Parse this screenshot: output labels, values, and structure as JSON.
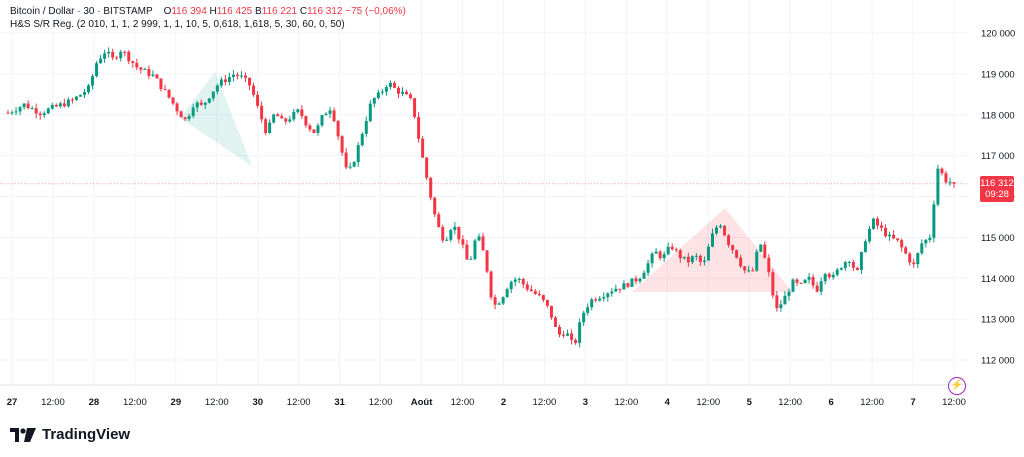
{
  "legend": {
    "symbol": "Bitcoin / Dollar · 30 · BITSTAMP",
    "ohlc": [
      {
        "label": "O",
        "value": "116 394"
      },
      {
        "label": "H",
        "value": "116 425"
      },
      {
        "label": "B",
        "value": "116 221"
      },
      {
        "label": "C",
        "value": "116 312"
      }
    ],
    "change": "−75 (−0,06%)",
    "indicator": "H&S S/R Reg. (2 010, 1, 1, 2 999, 1, 1, 10, 5, 0,618, 1,618, 5, 30, 60, 0, 50)"
  },
  "price_label": {
    "price": "116 312",
    "countdown": "09:28"
  },
  "brand": "TradingView",
  "colors": {
    "up": "#089981",
    "down": "#f23645",
    "grid": "#f0f3fa",
    "text": "#131722"
  },
  "chart_data": {
    "type": "candlestick",
    "y_ticks": [
      "120 000",
      "119 000",
      "118 000",
      "117 000",
      "116 000",
      "115 000",
      "114 000",
      "113 000",
      "112 000"
    ],
    "y_tick_values": [
      120000,
      119000,
      118000,
      117000,
      116000,
      115000,
      114000,
      113000,
      112000
    ],
    "x_ticks": [
      "27",
      "12:00",
      "28",
      "12:00",
      "29",
      "12:00",
      "30",
      "12:00",
      "31",
      "12:00",
      "Août",
      "12:00",
      "2",
      "12:00",
      "3",
      "12:00",
      "4",
      "12:00",
      "5",
      "12:00",
      "6",
      "12:00",
      "7",
      "12:00"
    ],
    "price_line": 116312,
    "path": [
      [
        0,
        118050
      ],
      [
        2,
        118250
      ],
      [
        4,
        118050
      ],
      [
        6,
        118200
      ],
      [
        8,
        118350
      ],
      [
        10,
        118650
      ],
      [
        11,
        119300
      ],
      [
        12,
        119550
      ],
      [
        13,
        119350
      ],
      [
        14,
        119600
      ],
      [
        16,
        119150
      ],
      [
        18,
        118950
      ],
      [
        20,
        118400
      ],
      [
        21,
        118100
      ],
      [
        22,
        117850
      ],
      [
        23,
        118300
      ],
      [
        24,
        118200
      ],
      [
        25,
        118500
      ],
      [
        26,
        118750
      ],
      [
        28,
        119000
      ],
      [
        29,
        118900
      ],
      [
        30,
        118700
      ],
      [
        31,
        118100
      ],
      [
        32,
        117550
      ],
      [
        33,
        118050
      ],
      [
        34,
        117800
      ],
      [
        35,
        117950
      ],
      [
        36,
        118100
      ],
      [
        37,
        117750
      ],
      [
        38,
        117550
      ],
      [
        39,
        118000
      ],
      [
        40,
        118200
      ],
      [
        41,
        117350
      ],
      [
        42,
        116500
      ],
      [
        43,
        117000
      ],
      [
        44,
        117700
      ],
      [
        45,
        118350
      ],
      [
        46,
        118500
      ],
      [
        47,
        118800
      ],
      [
        48,
        118600
      ],
      [
        49,
        118500
      ],
      [
        50,
        118300
      ],
      [
        51,
        117200
      ],
      [
        52,
        116250
      ],
      [
        53,
        115350
      ],
      [
        54,
        114900
      ],
      [
        55,
        115350
      ],
      [
        56,
        114900
      ],
      [
        57,
        114300
      ],
      [
        58,
        115100
      ],
      [
        59,
        114500
      ],
      [
        60,
        113300
      ],
      [
        61,
        113500
      ],
      [
        62,
        113900
      ],
      [
        63,
        114000
      ],
      [
        64,
        113800
      ],
      [
        65,
        113650
      ],
      [
        66,
        113500
      ],
      [
        67,
        113200
      ],
      [
        68,
        112600
      ],
      [
        69,
        112700
      ],
      [
        70,
        112300
      ],
      [
        71,
        113100
      ],
      [
        72,
        113450
      ],
      [
        73,
        113550
      ],
      [
        74,
        113650
      ],
      [
        75,
        113750
      ],
      [
        76,
        113800
      ],
      [
        77,
        113900
      ],
      [
        78,
        114000
      ],
      [
        79,
        114300
      ],
      [
        80,
        114650
      ],
      [
        81,
        114500
      ],
      [
        82,
        114800
      ],
      [
        83,
        114550
      ],
      [
        84,
        114400
      ],
      [
        85,
        114550
      ],
      [
        86,
        114300
      ],
      [
        87,
        115000
      ],
      [
        88,
        115400
      ],
      [
        89,
        114900
      ],
      [
        90,
        114600
      ],
      [
        91,
        114200
      ],
      [
        92,
        114100
      ],
      [
        93,
        114900
      ],
      [
        94,
        114200
      ],
      [
        95,
        113200
      ],
      [
        96,
        113500
      ],
      [
        97,
        113900
      ],
      [
        98,
        113800
      ],
      [
        99,
        114000
      ],
      [
        100,
        113700
      ],
      [
        101,
        114200
      ],
      [
        102,
        114000
      ],
      [
        103,
        114300
      ],
      [
        104,
        114500
      ],
      [
        105,
        114100
      ],
      [
        106,
        114950
      ],
      [
        107,
        115400
      ],
      [
        108,
        115200
      ],
      [
        109,
        115000
      ],
      [
        110,
        114900
      ],
      [
        111,
        114600
      ],
      [
        112,
        114300
      ],
      [
        113,
        114850
      ],
      [
        114,
        115000
      ],
      [
        115,
        116700
      ],
      [
        116,
        116400
      ],
      [
        117,
        116312
      ]
    ]
  }
}
